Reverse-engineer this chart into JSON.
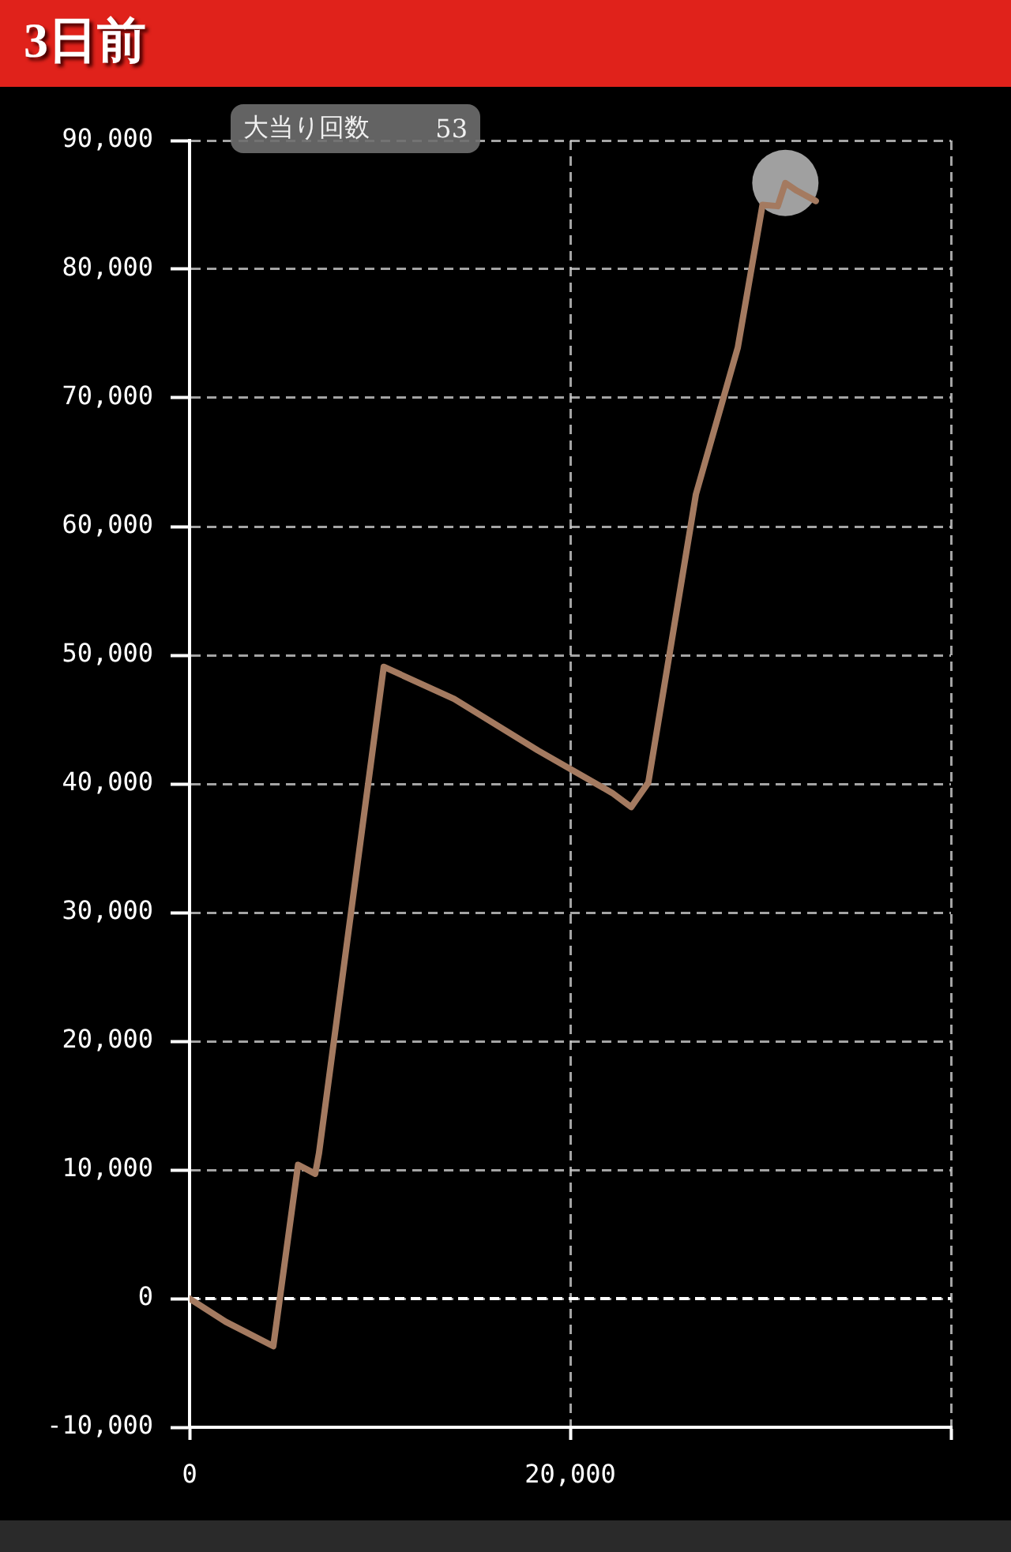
{
  "chart_data": {
    "type": "line",
    "title": "3日前",
    "annotations": [
      "大当り回数",
      "53"
    ],
    "series": [
      {
        "color": "#a47a60",
        "x": [
          0,
          1900,
          4400,
          5700,
          6600,
          6800,
          10200,
          13900,
          18300,
          22200,
          23200,
          24100,
          26600,
          28800,
          30100,
          30900,
          31300,
          31900,
          32900
        ],
        "values": [
          0,
          -1800,
          -3700,
          10400,
          9700,
          11300,
          49100,
          46600,
          42600,
          39300,
          38200,
          40100,
          62500,
          73900,
          85000,
          84900,
          86700,
          86100,
          85300
        ]
      },
      {
        "type": "scatter",
        "color": "#a0a0a0",
        "marker": "circle",
        "x": [
          31300
        ],
        "values": [
          86700
        ]
      }
    ],
    "xlim": [
      0,
      40000
    ],
    "xticks": [
      0,
      {
        "value": 20000,
        "label": "20,000"
      },
      {
        "value": 40000,
        "label": null
      }
    ],
    "ylim": [
      -10000,
      90000
    ],
    "yticks": [
      {
        "value": -10000,
        "label": "-10,000"
      },
      0,
      {
        "value": 10000,
        "label": "10,000"
      },
      {
        "value": 20000,
        "label": "20,000"
      },
      {
        "value": 30000,
        "label": "30,000"
      },
      {
        "value": 40000,
        "label": "40,000"
      },
      {
        "value": 50000,
        "label": "50,000"
      },
      {
        "value": 60000,
        "label": "60,000"
      },
      {
        "value": 70000,
        "label": "70,000"
      },
      {
        "value": 80000,
        "label": "80,000"
      },
      {
        "value": 90000,
        "label": "90,000"
      }
    ],
    "ref_lines": [
      {
        "axis": "y",
        "value": 0,
        "color": "#ffffff",
        "line_style": "dashed"
      }
    ],
    "grid": true,
    "legend": false,
    "marker": "none",
    "line_style": "solid"
  }
}
